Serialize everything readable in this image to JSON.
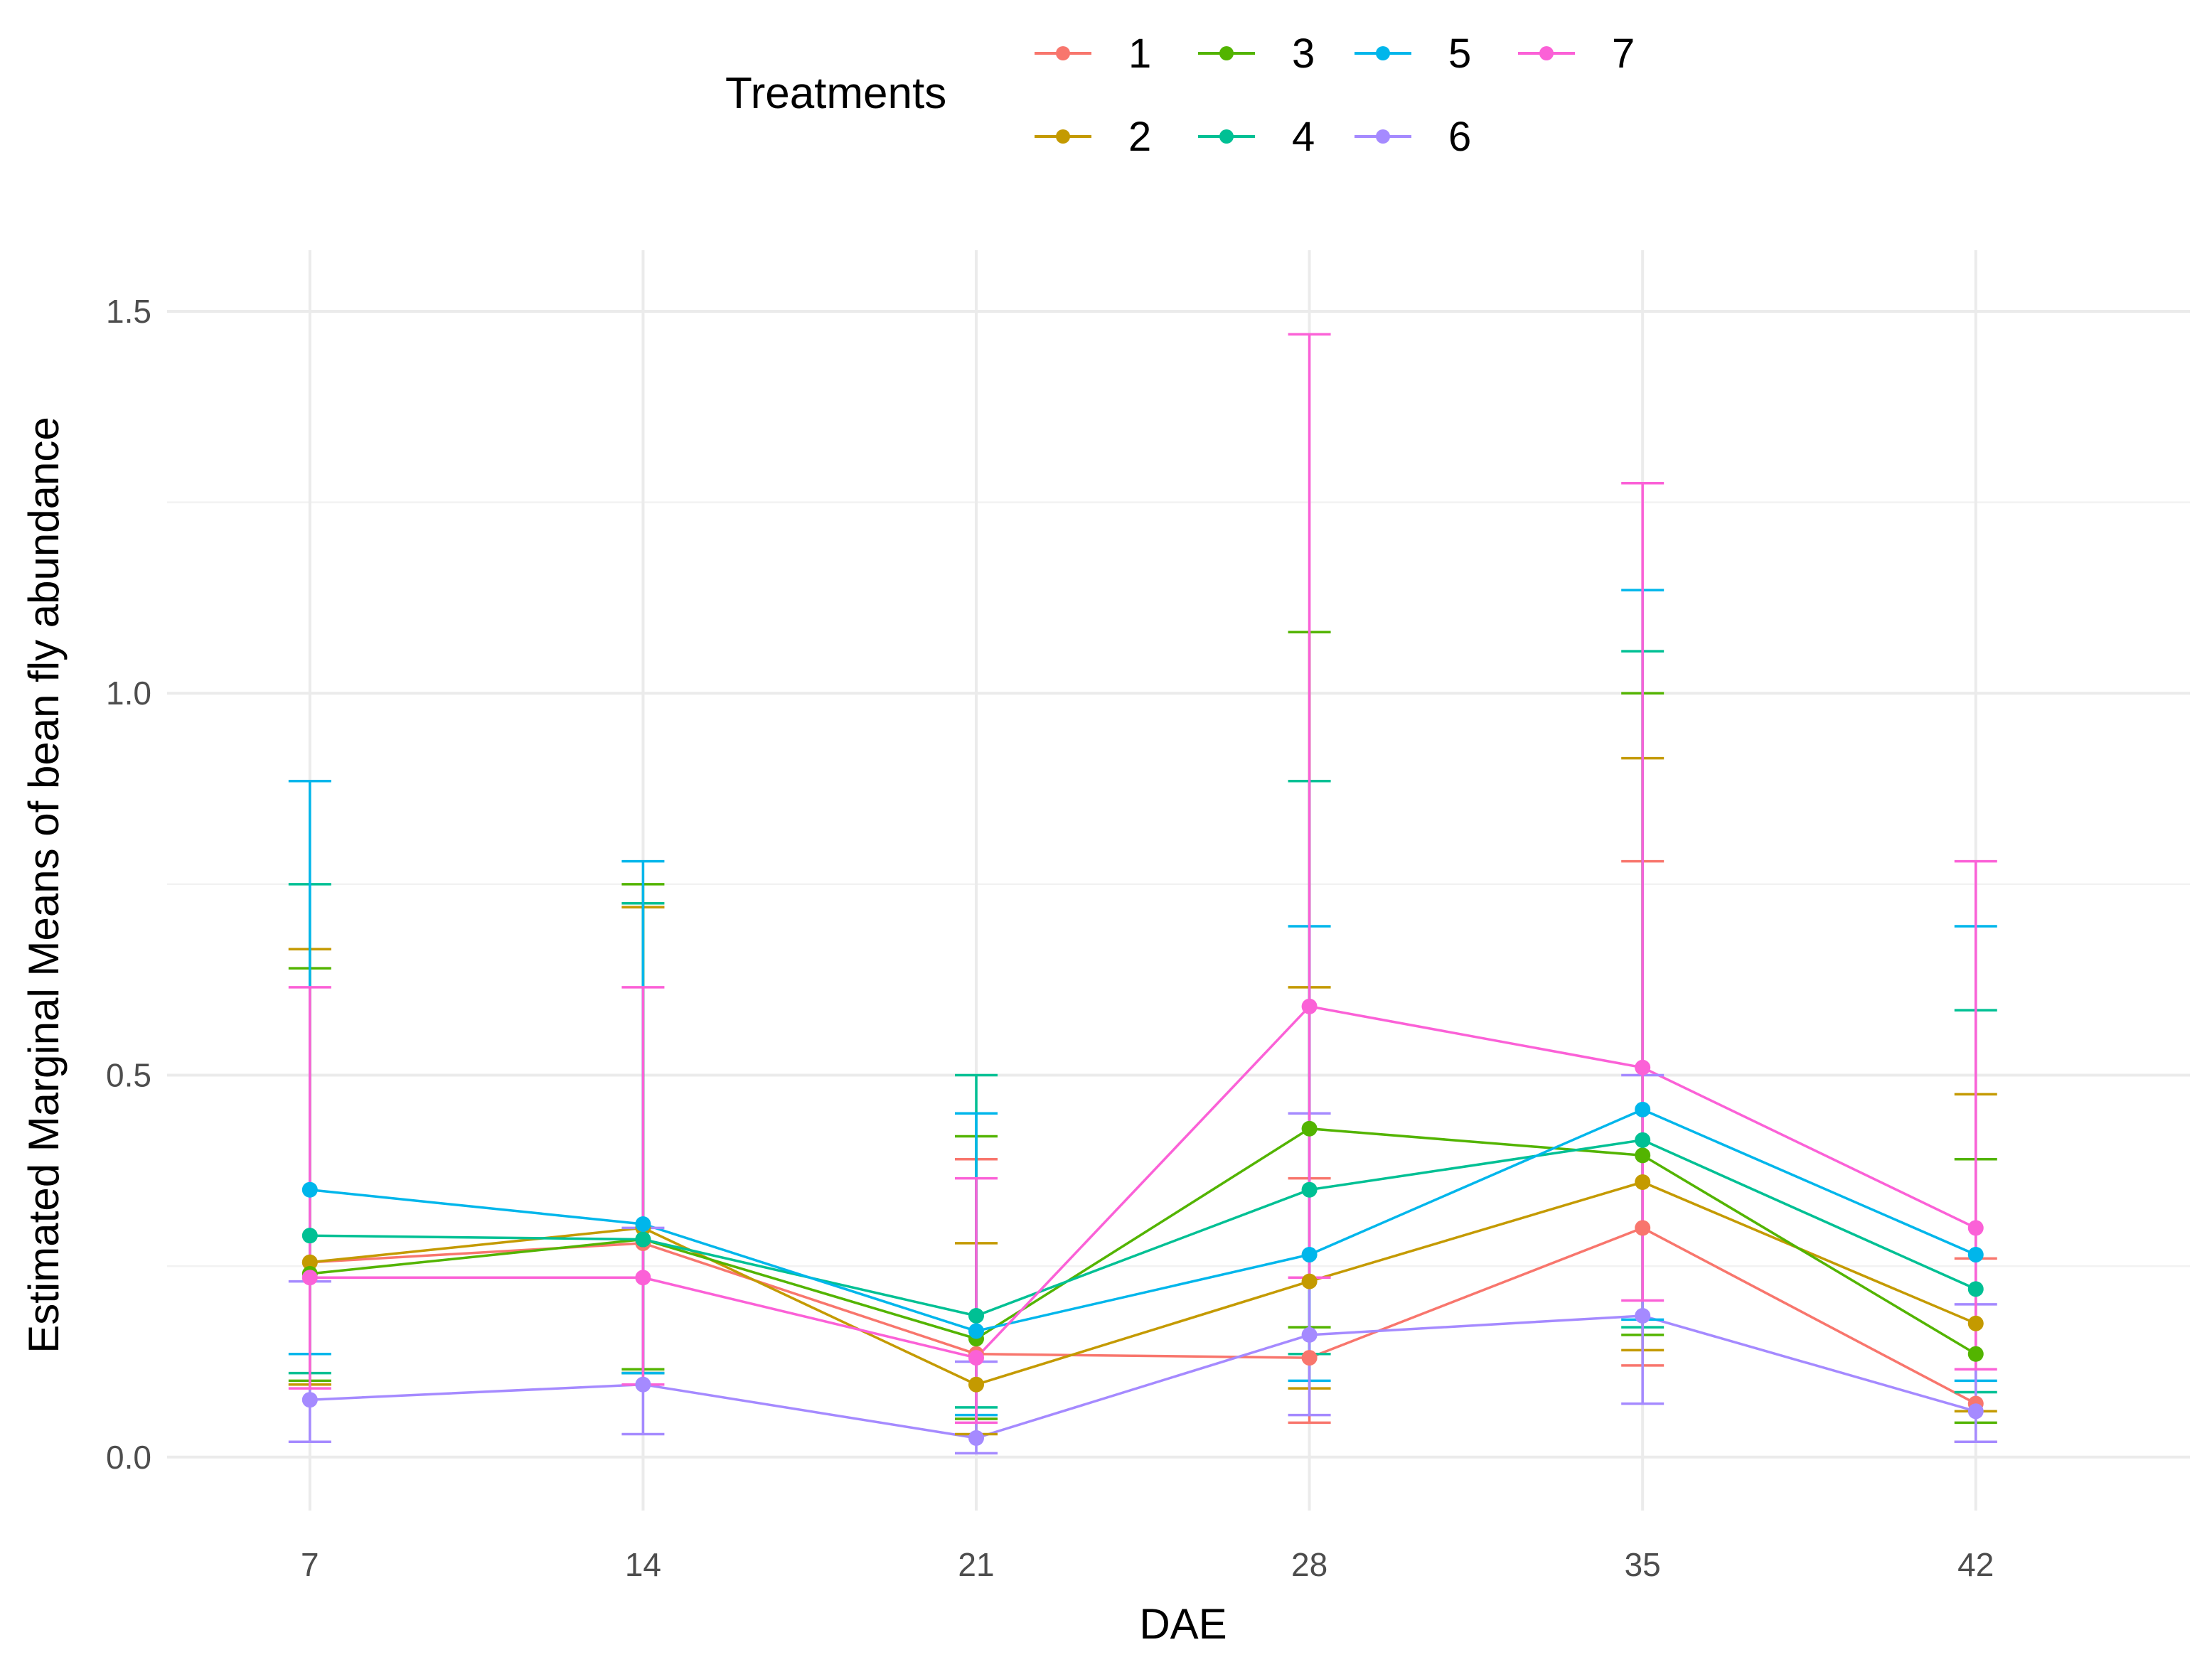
{
  "chart_data": {
    "type": "line",
    "title": "",
    "xlabel": "DAE",
    "ylabel": "Estimated Marginal Means of bean fly abundance",
    "x": [
      7,
      14,
      21,
      28,
      35,
      42
    ],
    "x_tick_labels": [
      "7",
      "14",
      "21",
      "28",
      "35",
      "42"
    ],
    "y_ticks": [
      0.0,
      0.5,
      1.0,
      1.5
    ],
    "y_tick_labels": [
      "0.0",
      "0.5",
      "1.0",
      "1.5"
    ],
    "xlim": [
      4,
      46.5
    ],
    "ylim": [
      -0.07,
      1.58
    ],
    "grid": true,
    "legend": {
      "title": "Treatments",
      "placement": "top"
    },
    "series": [
      {
        "name": "1",
        "color": "#F8766D",
        "values": [
          0.255,
          0.28,
          0.135,
          0.13,
          0.3,
          0.07
        ],
        "lower": [
          0.095,
          0.11,
          0.05,
          0.045,
          0.12,
          0.02
        ],
        "upper": [
          0.665,
          0.72,
          0.39,
          0.365,
          0.78,
          0.26
        ]
      },
      {
        "name": "2",
        "color": "#C49A00",
        "values": [
          0.255,
          0.3,
          0.095,
          0.23,
          0.36,
          0.175
        ],
        "lower": [
          0.095,
          0.11,
          0.03,
          0.09,
          0.14,
          0.06
        ],
        "upper": [
          0.665,
          0.72,
          0.28,
          0.615,
          0.915,
          0.475
        ]
      },
      {
        "name": "3",
        "color": "#53B400",
        "values": [
          0.24,
          0.285,
          0.155,
          0.43,
          0.395,
          0.135
        ],
        "lower": [
          0.1,
          0.115,
          0.05,
          0.17,
          0.16,
          0.045
        ],
        "upper": [
          0.64,
          0.75,
          0.42,
          1.08,
          1.0,
          0.39
        ]
      },
      {
        "name": "4",
        "color": "#00C094",
        "values": [
          0.29,
          0.285,
          0.185,
          0.35,
          0.415,
          0.22
        ],
        "lower": [
          0.11,
          0.11,
          0.065,
          0.135,
          0.17,
          0.085
        ],
        "upper": [
          0.75,
          0.725,
          0.5,
          0.885,
          1.055,
          0.585
        ]
      },
      {
        "name": "5",
        "color": "#00B6EB",
        "values": [
          0.35,
          0.305,
          0.165,
          0.265,
          0.455,
          0.265
        ],
        "lower": [
          0.135,
          0.11,
          0.055,
          0.1,
          0.18,
          0.1
        ],
        "upper": [
          0.885,
          0.78,
          0.45,
          0.695,
          1.135,
          0.695
        ]
      },
      {
        "name": "6",
        "color": "#A58AFF",
        "values": [
          0.075,
          0.095,
          0.025,
          0.16,
          0.185,
          0.06
        ],
        "lower": [
          0.02,
          0.03,
          0.005,
          0.055,
          0.07,
          0.02
        ],
        "upper": [
          0.23,
          0.3,
          0.125,
          0.45,
          0.5,
          0.2
        ]
      },
      {
        "name": "7",
        "color": "#FB61D7",
        "values": [
          0.235,
          0.235,
          0.13,
          0.59,
          0.51,
          0.3
        ],
        "lower": [
          0.09,
          0.095,
          0.045,
          0.235,
          0.205,
          0.115
        ],
        "upper": [
          0.615,
          0.615,
          0.365,
          1.47,
          1.275,
          0.78
        ]
      }
    ]
  }
}
